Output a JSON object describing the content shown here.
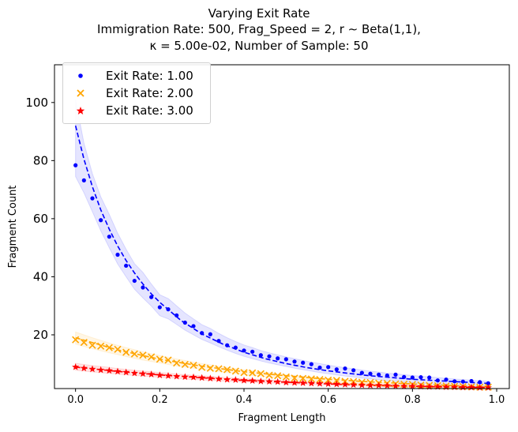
{
  "titles": {
    "line1": "Varying Exit Rate",
    "line2": "Immigration Rate: 500, Frag_Speed = 2,  r ∼  Beta(1,1),",
    "line3": "κ =  5.00e-02, Number of Sample: 50"
  },
  "chart_data": {
    "type": "scatter",
    "xlabel": "Fragment Length",
    "ylabel": "Fragment Count",
    "xlim": [
      -0.05,
      1.03
    ],
    "ylim": [
      1.5,
      113
    ],
    "x_ticks": [
      0.0,
      0.2,
      0.4,
      0.6,
      0.8,
      1.0
    ],
    "x_tick_labels": [
      "0.0",
      "0.2",
      "0.4",
      "0.6",
      "0.8",
      "1.0"
    ],
    "y_ticks": [
      20,
      40,
      60,
      80,
      100
    ],
    "y_tick_labels": [
      "20",
      "40",
      "60",
      "80",
      "100"
    ],
    "grid": false,
    "legend_position": "upper-left",
    "x": [
      0.0,
      0.02,
      0.04,
      0.06,
      0.08,
      0.1,
      0.12,
      0.14,
      0.16,
      0.18,
      0.2,
      0.22,
      0.24,
      0.26,
      0.28,
      0.3,
      0.32,
      0.34,
      0.36,
      0.38,
      0.4,
      0.42,
      0.44,
      0.46,
      0.48,
      0.5,
      0.52,
      0.54,
      0.56,
      0.58,
      0.6,
      0.62,
      0.64,
      0.66,
      0.68,
      0.7,
      0.72,
      0.74,
      0.76,
      0.78,
      0.8,
      0.82,
      0.84,
      0.86,
      0.88,
      0.9,
      0.92,
      0.94,
      0.96,
      0.98
    ],
    "series": [
      {
        "name": "Exit Rate: 1.00",
        "color": "#0000ff",
        "marker": "circle",
        "values": [
          78.4,
          73.2,
          67.0,
          59.5,
          53.8,
          47.6,
          43.8,
          38.6,
          36.3,
          33.0,
          29.5,
          28.8,
          26.7,
          24.2,
          23.0,
          20.6,
          20.2,
          17.9,
          16.4,
          15.6,
          14.6,
          14.2,
          13.0,
          12.6,
          11.9,
          11.6,
          10.8,
          10.4,
          9.9,
          8.7,
          8.9,
          8.1,
          8.4,
          7.8,
          6.9,
          6.6,
          6.3,
          6.0,
          6.3,
          5.5,
          5.3,
          5.4,
          5.3,
          4.3,
          4.6,
          4.0,
          3.9,
          4.1,
          3.7,
          3.3
        ],
        "band_lower": [
          74.5,
          68.9,
          62.4,
          55.8,
          50.0,
          44.4,
          40.0,
          35.7,
          32.7,
          29.9,
          26.6,
          25.5,
          23.6,
          21.6,
          20.0,
          18.4,
          17.2,
          15.9,
          14.7,
          13.6,
          12.6,
          11.8,
          11.0,
          10.3,
          9.7,
          9.1,
          8.5,
          8.0,
          7.5,
          7.0,
          6.6,
          6.2,
          5.8,
          5.5,
          5.1,
          4.8,
          4.5,
          4.2,
          4.0,
          3.7,
          3.5,
          3.3,
          3.1,
          2.9,
          2.7,
          2.6,
          2.4,
          2.3,
          2.1,
          2.0
        ],
        "band_upper": [
          101.0,
          86.0,
          75.5,
          67.5,
          61.5,
          55.0,
          49.5,
          44.5,
          41.5,
          37.5,
          33.8,
          32.5,
          30.0,
          27.5,
          25.5,
          23.5,
          22.2,
          20.5,
          19.0,
          17.7,
          16.5,
          15.6,
          14.6,
          13.8,
          13.1,
          12.4,
          11.8,
          11.2,
          10.6,
          10.1,
          9.6,
          9.1,
          8.7,
          8.3,
          7.9,
          7.5,
          7.2,
          6.8,
          6.6,
          6.3,
          6.0,
          5.8,
          5.5,
          5.3,
          5.0,
          4.8,
          4.6,
          4.4,
          4.2,
          4.0
        ]
      },
      {
        "name": "Exit Rate: 2.00",
        "color": "#ffa500",
        "marker": "x",
        "values": [
          18.3,
          17.4,
          16.4,
          16.1,
          15.6,
          15.0,
          14.0,
          13.4,
          13.0,
          12.4,
          11.6,
          11.3,
          10.3,
          9.8,
          9.5,
          8.8,
          8.5,
          8.3,
          8.0,
          7.5,
          7.0,
          6.9,
          6.6,
          6.1,
          5.9,
          5.5,
          5.1,
          5.0,
          4.8,
          4.6,
          4.4,
          4.3,
          4.0,
          3.9,
          3.7,
          3.6,
          3.4,
          3.3,
          3.1,
          3.0,
          2.9,
          2.7,
          2.6,
          2.5,
          2.4,
          2.3,
          2.2,
          2.1,
          2.0,
          2.0
        ],
        "band_lower": [
          16.8,
          16.0,
          15.2,
          14.5,
          13.8,
          13.2,
          12.5,
          11.9,
          11.3,
          10.8,
          10.3,
          9.8,
          9.3,
          8.9,
          8.5,
          8.1,
          7.7,
          7.3,
          7.0,
          6.7,
          6.3,
          6.0,
          5.8,
          5.5,
          5.2,
          5.0,
          4.8,
          4.5,
          4.3,
          4.1,
          3.9,
          3.8,
          3.6,
          3.4,
          3.3,
          3.1,
          3.0,
          2.8,
          2.7,
          2.6,
          2.5,
          2.3,
          2.2,
          2.1,
          2.0,
          1.9,
          1.8,
          1.8,
          1.7,
          1.6
        ],
        "band_upper": [
          21.0,
          20.0,
          19.0,
          18.1,
          17.2,
          16.4,
          15.6,
          14.9,
          14.2,
          13.5,
          12.9,
          12.3,
          11.7,
          11.2,
          10.6,
          10.1,
          9.7,
          9.2,
          8.8,
          8.4,
          8.0,
          7.6,
          7.3,
          7.0,
          6.6,
          6.3,
          6.0,
          5.8,
          5.5,
          5.3,
          5.0,
          4.8,
          4.6,
          4.4,
          4.2,
          4.0,
          3.8,
          3.6,
          3.5,
          3.3,
          3.2,
          3.0,
          2.9,
          2.8,
          2.6,
          2.5,
          2.4,
          2.3,
          2.2,
          2.1
        ]
      },
      {
        "name": "Exit Rate: 3.00",
        "color": "#ff0000",
        "marker": "star",
        "values": [
          8.9,
          8.5,
          8.2,
          7.9,
          7.7,
          7.4,
          7.1,
          6.8,
          6.6,
          6.4,
          6.1,
          5.9,
          5.7,
          5.5,
          5.4,
          5.2,
          5.0,
          4.8,
          4.6,
          4.5,
          4.3,
          4.2,
          4.0,
          3.9,
          3.8,
          3.6,
          3.5,
          3.4,
          3.3,
          3.2,
          3.1,
          3.0,
          2.9,
          2.8,
          2.7,
          2.6,
          2.6,
          2.5,
          2.4,
          2.3,
          2.3,
          2.2,
          2.1,
          2.1,
          2.0,
          2.0,
          1.9,
          1.9,
          1.8,
          1.8
        ],
        "band_lower": [
          7.8,
          7.5,
          7.2,
          7.0,
          6.7,
          6.5,
          6.2,
          6.0,
          5.8,
          5.6,
          5.4,
          5.2,
          5.0,
          4.8,
          4.6,
          4.5,
          4.3,
          4.2,
          4.0,
          3.9,
          3.7,
          3.6,
          3.5,
          3.4,
          3.3,
          3.1,
          3.0,
          2.9,
          2.8,
          2.8,
          2.7,
          2.6,
          2.5,
          2.4,
          2.3,
          2.3,
          2.2,
          2.1,
          2.1,
          2.0,
          1.9,
          1.9,
          1.8,
          1.8,
          1.7,
          1.7,
          1.6,
          1.6,
          1.6,
          1.5
        ],
        "band_upper": [
          10.2,
          9.8,
          9.4,
          9.1,
          8.8,
          8.4,
          8.1,
          7.8,
          7.5,
          7.3,
          7.0,
          6.8,
          6.5,
          6.3,
          6.1,
          5.9,
          5.7,
          5.5,
          5.3,
          5.1,
          4.9,
          4.8,
          4.6,
          4.5,
          4.3,
          4.2,
          4.0,
          3.9,
          3.8,
          3.7,
          3.6,
          3.5,
          3.3,
          3.2,
          3.1,
          3.1,
          3.0,
          2.9,
          2.8,
          2.7,
          2.6,
          2.6,
          2.5,
          2.4,
          2.4,
          2.3,
          2.2,
          2.2,
          2.1,
          2.1
        ]
      }
    ],
    "fit_lines": [
      {
        "color": "#0000ff",
        "x": [
          0.0,
          0.02,
          0.04,
          0.06,
          0.08,
          0.1,
          0.12,
          0.14,
          0.16,
          0.18,
          0.2,
          0.25,
          0.3,
          0.35,
          0.4,
          0.45,
          0.5,
          0.55,
          0.6,
          0.65,
          0.7,
          0.75,
          0.8,
          0.85,
          0.9,
          0.95,
          0.98
        ],
        "y": [
          92.0,
          80.5,
          71.0,
          63.0,
          56.4,
          50.6,
          45.6,
          41.3,
          37.5,
          34.1,
          31.2,
          25.0,
          20.3,
          16.8,
          14.0,
          11.8,
          10.1,
          8.7,
          7.6,
          6.7,
          5.9,
          5.3,
          4.7,
          4.3,
          3.9,
          3.5,
          3.3
        ]
      },
      {
        "color": "#ffa500",
        "x": [
          0.0,
          0.1,
          0.2,
          0.3,
          0.4,
          0.5,
          0.6,
          0.7,
          0.8,
          0.9,
          0.98
        ],
        "y": [
          19.0,
          14.8,
          11.6,
          9.2,
          7.3,
          5.9,
          4.7,
          3.8,
          3.1,
          2.5,
          2.2
        ]
      },
      {
        "color": "#ff0000",
        "x": [
          0.0,
          0.1,
          0.2,
          0.3,
          0.4,
          0.5,
          0.6,
          0.7,
          0.8,
          0.9,
          0.98
        ],
        "y": [
          8.9,
          7.4,
          6.2,
          5.2,
          4.3,
          3.7,
          3.1,
          2.6,
          2.3,
          2.0,
          1.8
        ]
      }
    ]
  }
}
